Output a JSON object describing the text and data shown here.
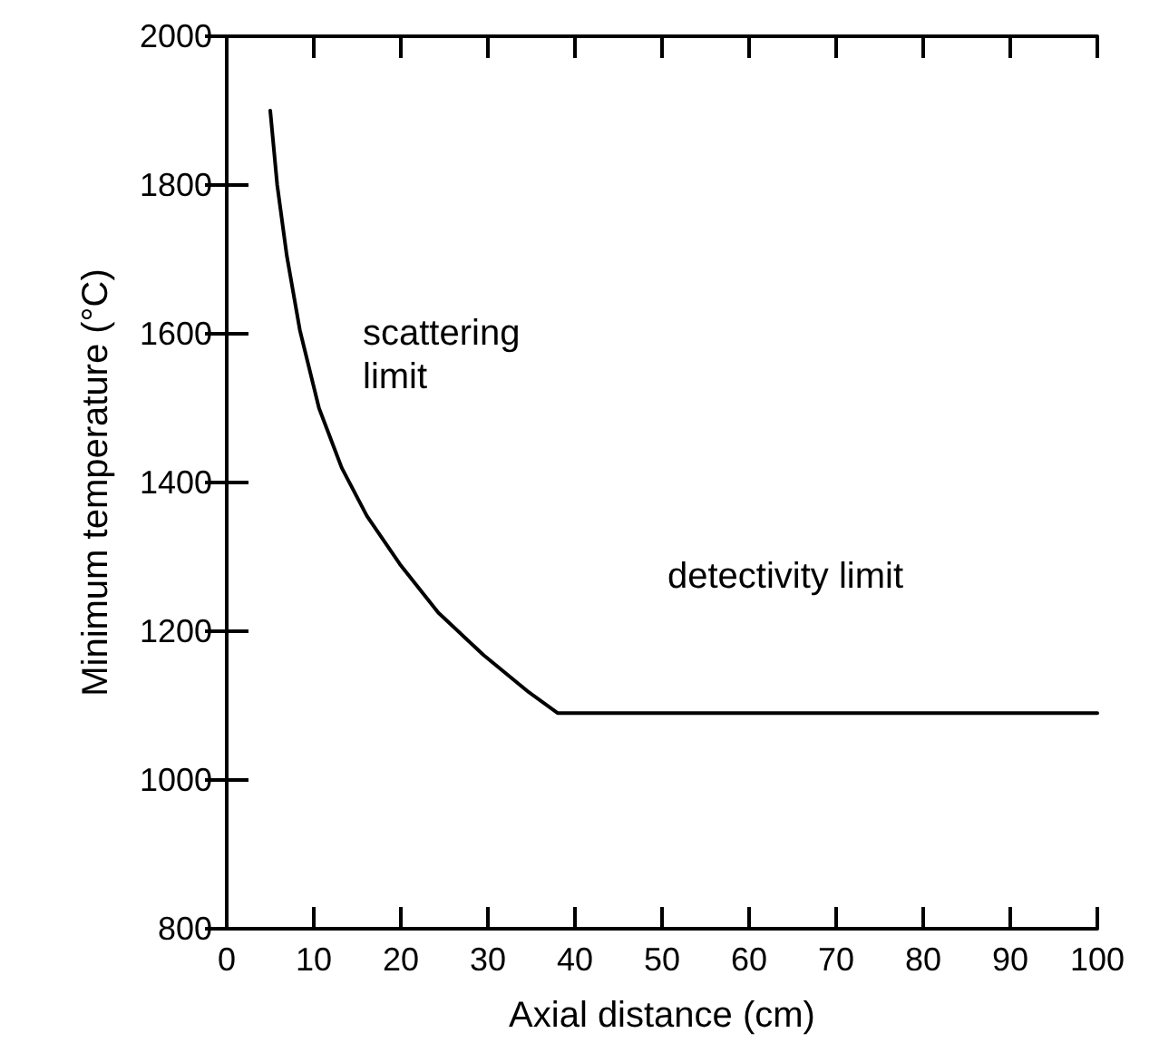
{
  "chart_data": {
    "type": "line",
    "xlabel": "Axial distance (cm)",
    "ylabel": "Minimum temperature (°C)",
    "xlim": [
      0,
      100
    ],
    "xticks": [
      0,
      10,
      20,
      30,
      40,
      50,
      60,
      70,
      80,
      90,
      100
    ],
    "ylim": [
      800,
      2000
    ],
    "yticks": [
      800,
      1000,
      1200,
      1400,
      1600,
      1800,
      2000
    ],
    "grid": false,
    "marker": "none",
    "line_style": "solid",
    "series": [
      {
        "color": "#000000",
        "x": [
          5,
          5.8,
          6.9,
          8.4,
          10.6,
          13.2,
          16.1,
          19.9,
          24.3,
          29.5,
          34.7,
          38,
          100
        ],
        "values": [
          1900,
          1800,
          1705,
          1605,
          1500,
          1420,
          1355,
          1290,
          1225,
          1168,
          1118,
          1090,
          1090
        ]
      }
    ],
    "annotations": [
      "scattering\nlimit",
      "detectivity limit"
    ]
  }
}
